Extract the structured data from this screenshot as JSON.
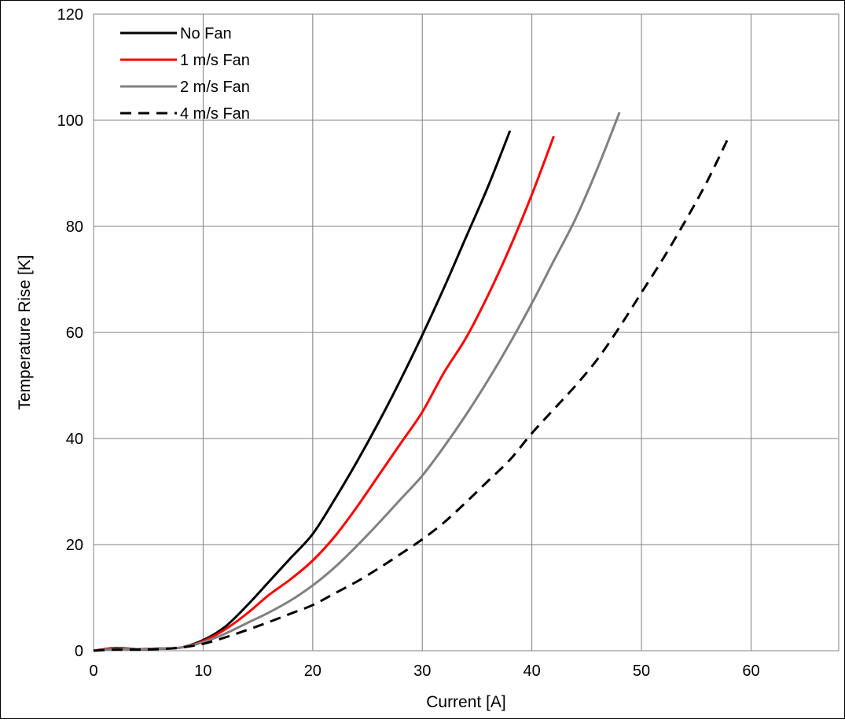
{
  "chart_data": {
    "type": "line",
    "title": "",
    "xlabel": "Current [A]",
    "ylabel": "Temperature Rise [K]",
    "xlim": [
      0,
      68
    ],
    "ylim": [
      0,
      120
    ],
    "xticks": [
      0,
      10,
      20,
      30,
      40,
      50,
      60
    ],
    "yticks": [
      0,
      20,
      40,
      60,
      80,
      100,
      120
    ],
    "grid": true,
    "legend_position": "top-left",
    "series": [
      {
        "name": "No Fan",
        "color": "#000000",
        "dash": "solid",
        "points": [
          [
            0,
            0
          ],
          [
            2,
            0.5
          ],
          [
            4,
            0.3
          ],
          [
            6,
            0.4
          ],
          [
            8,
            0.6
          ],
          [
            10,
            2
          ],
          [
            12,
            4.5
          ],
          [
            14,
            8.5
          ],
          [
            16,
            13
          ],
          [
            18,
            17.5
          ],
          [
            20,
            22
          ],
          [
            22,
            28.5
          ],
          [
            24,
            35.5
          ],
          [
            26,
            43
          ],
          [
            28,
            51
          ],
          [
            30,
            59.5
          ],
          [
            32,
            68.5
          ],
          [
            34,
            78
          ],
          [
            36,
            87.5
          ],
          [
            38,
            98
          ]
        ]
      },
      {
        "name": "1 m/s Fan",
        "color": "#ff0000",
        "dash": "solid",
        "points": [
          [
            0,
            0
          ],
          [
            2,
            0.4
          ],
          [
            4,
            0.3
          ],
          [
            6,
            0.4
          ],
          [
            8,
            0.6
          ],
          [
            10,
            1.8
          ],
          [
            12,
            4
          ],
          [
            14,
            7
          ],
          [
            16,
            10.5
          ],
          [
            18,
            13.5
          ],
          [
            20,
            17
          ],
          [
            22,
            21.5
          ],
          [
            24,
            27
          ],
          [
            26,
            33
          ],
          [
            28,
            39
          ],
          [
            30,
            45
          ],
          [
            32,
            52.5
          ],
          [
            34,
            59
          ],
          [
            36,
            67
          ],
          [
            38,
            76
          ],
          [
            40,
            86
          ],
          [
            42,
            97
          ]
        ]
      },
      {
        "name": "2 m/s Fan",
        "color": "#808080",
        "dash": "solid",
        "points": [
          [
            0,
            0
          ],
          [
            2,
            0.3
          ],
          [
            4,
            0.3
          ],
          [
            6,
            0.4
          ],
          [
            8,
            0.6
          ],
          [
            10,
            1.6
          ],
          [
            12,
            3.2
          ],
          [
            14,
            5.2
          ],
          [
            16,
            7.2
          ],
          [
            18,
            9.5
          ],
          [
            20,
            12.3
          ],
          [
            22,
            15.7
          ],
          [
            24,
            19.7
          ],
          [
            26,
            24
          ],
          [
            28,
            28.5
          ],
          [
            30,
            33
          ],
          [
            32,
            38.5
          ],
          [
            34,
            44.5
          ],
          [
            36,
            51
          ],
          [
            38,
            58
          ],
          [
            40,
            65.5
          ],
          [
            42,
            73.5
          ],
          [
            44,
            81.5
          ],
          [
            46,
            91
          ],
          [
            48,
            101.5
          ]
        ]
      },
      {
        "name": "4 m/s Fan",
        "color": "#000000",
        "dash": "dashed",
        "points": [
          [
            0,
            0
          ],
          [
            2,
            0.2
          ],
          [
            4,
            0.2
          ],
          [
            6,
            0.3
          ],
          [
            8,
            0.6
          ],
          [
            10,
            1.3
          ],
          [
            12,
            2.5
          ],
          [
            14,
            3.9
          ],
          [
            16,
            5.4
          ],
          [
            18,
            7
          ],
          [
            20,
            8.6
          ],
          [
            22,
            10.8
          ],
          [
            24,
            13
          ],
          [
            26,
            15.5
          ],
          [
            28,
            18.2
          ],
          [
            30,
            21
          ],
          [
            32,
            24.2
          ],
          [
            34,
            28
          ],
          [
            36,
            32
          ],
          [
            38,
            36
          ],
          [
            40,
            41
          ],
          [
            42,
            45.5
          ],
          [
            44,
            50
          ],
          [
            46,
            55
          ],
          [
            48,
            61
          ],
          [
            50,
            67.5
          ],
          [
            52,
            74
          ],
          [
            54,
            81
          ],
          [
            56,
            88.5
          ],
          [
            58,
            97
          ]
        ]
      }
    ]
  }
}
